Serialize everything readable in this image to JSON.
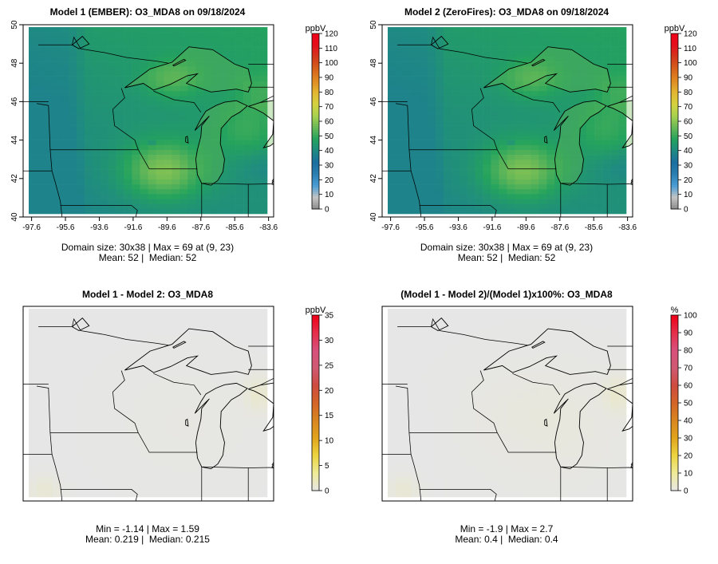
{
  "figure": {
    "colors": {
      "seq": [
        "#8a8a8a",
        "#c4c4c4",
        "#4b9ed6",
        "#2b7fb0",
        "#1b6fa0",
        "#1f8a82",
        "#24a35d",
        "#6ab957",
        "#a8d24f",
        "#d6d23f",
        "#e2b530",
        "#e08a22",
        "#d6611b",
        "#d2391c",
        "#e5101d",
        "#f00018"
      ],
      "div": [
        "#e6e6e6",
        "#efeb9a",
        "#ecd540",
        "#e2a51c",
        "#d98620",
        "#d46528",
        "#cf4b3f",
        "#cf5a72",
        "#d8507c",
        "#e52f4a",
        "#f00018"
      ]
    }
  },
  "chart_data": [
    {
      "type": "heatmap",
      "title": "Model 1 (EMBER): O3_MDA8 on 09/18/2024",
      "xlabel": "",
      "ylabel": "",
      "x_ticks": [
        "-97.6",
        "-95.6",
        "-93.6",
        "-91.6",
        "-89.6",
        "-87.6",
        "-85.6",
        "-83.6"
      ],
      "y_ticks": [
        "40",
        "42",
        "44",
        "46",
        "48",
        "50"
      ],
      "xlim": [
        -98.1,
        -83.3
      ],
      "ylim": [
        40,
        50
      ],
      "colorbar": {
        "unit": "ppbV",
        "ticks": [
          "0",
          "10",
          "20",
          "30",
          "40",
          "50",
          "60",
          "70",
          "80",
          "90",
          "100",
          "110",
          "120"
        ],
        "range": [
          0,
          120
        ]
      },
      "field": {
        "model": "ember",
        "min": 40,
        "max": 69
      },
      "stats": {
        "line1": "Domain size: 30x38 | Max = 69 at (9, 23)",
        "line2": "Mean: 52 |  Median: 52"
      }
    },
    {
      "type": "heatmap",
      "title": "Model 2 (ZeroFires): O3_MDA8 on 09/18/2024",
      "xlabel": "",
      "ylabel": "",
      "x_ticks": [
        "-97.6",
        "-95.6",
        "-93.6",
        "-91.6",
        "-89.6",
        "-87.6",
        "-85.6",
        "-83.6"
      ],
      "y_ticks": [
        "40",
        "42",
        "44",
        "46",
        "48",
        "50"
      ],
      "xlim": [
        -98.1,
        -83.3
      ],
      "ylim": [
        40,
        50
      ],
      "colorbar": {
        "unit": "ppbV",
        "ticks": [
          "0",
          "10",
          "20",
          "30",
          "40",
          "50",
          "60",
          "70",
          "80",
          "90",
          "100",
          "110",
          "120"
        ],
        "range": [
          0,
          120
        ]
      },
      "field": {
        "model": "zerofires",
        "min": 40,
        "max": 69
      },
      "stats": {
        "line1": "Domain size: 30x38 | Max = 69 at (9, 23)",
        "line2": "Mean: 52 |  Median: 52"
      }
    },
    {
      "type": "heatmap",
      "title": "Model 1 - Model 2: O3_MDA8",
      "xlabel": "",
      "ylabel": "",
      "colorbar": {
        "unit": "ppbV",
        "ticks": [
          "0",
          "5",
          "10",
          "15",
          "20",
          "25",
          "30",
          "35"
        ],
        "range": [
          0,
          35
        ]
      },
      "field": {
        "model": "diff",
        "min": -1.14,
        "max": 1.59
      },
      "stats": {
        "line1": "Min = -1.14 | Max = 1.59",
        "line2": "Mean: 0.219 |  Median: 0.215"
      }
    },
    {
      "type": "heatmap",
      "title": "(Model 1 - Model 2)/(Model 1)x100%: O3_MDA8",
      "xlabel": "",
      "ylabel": "",
      "colorbar": {
        "unit": "%",
        "ticks": [
          "0",
          "10",
          "20",
          "30",
          "40",
          "50",
          "60",
          "70",
          "80",
          "90",
          "100"
        ],
        "range": [
          0,
          100
        ]
      },
      "field": {
        "model": "pct",
        "min": -1.9,
        "max": 2.7
      },
      "stats": {
        "line1": "Min = -1.9 | Max = 2.7",
        "line2": "Mean: 0.4 |  Median: 0.4"
      }
    }
  ]
}
